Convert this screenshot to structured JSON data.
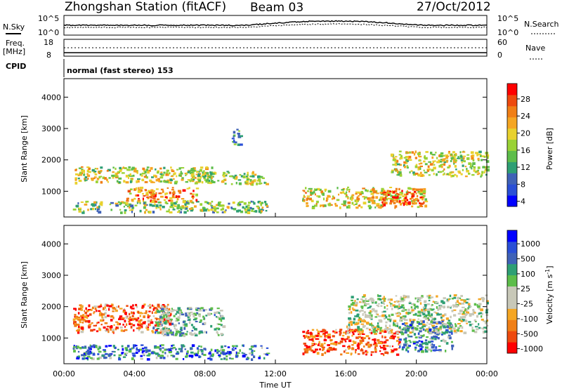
{
  "header": {
    "station": "Zhongshan Station (fitACF)",
    "beam": "Beam 03",
    "date": "27/Oct/2012"
  },
  "strips": {
    "sky_label": "N.Sky",
    "sky_ticks": [
      "10^5",
      "10^0"
    ],
    "search_label": "N.Search",
    "search_ticks": [
      "10^5",
      "10^0"
    ],
    "freq_label_line1": "Freq.",
    "freq_label_line2": "[MHz]",
    "freq_ticks": [
      "18",
      "8"
    ],
    "nave_label": "Nave",
    "nave_ticks": [
      "60",
      "0"
    ],
    "cpid_label": "CPID",
    "cpid_value": "normal (fast stereo) 153"
  },
  "x_ticks": [
    "00:00",
    "04:00",
    "08:00",
    "12:00",
    "16:00",
    "20:00",
    "00:00"
  ],
  "xlabel": "Time UT",
  "chart_data": [
    {
      "type": "heatmap",
      "name": "power",
      "ylabel": "Slant Range [km]",
      "yticks": [
        1000,
        2000,
        3000,
        4000
      ],
      "ylim": [
        180,
        4590
      ],
      "xlim": [
        0,
        24
      ],
      "colorbar": {
        "label": "Power [dB]",
        "ticks": [
          "28",
          "24",
          "20",
          "16",
          "12",
          "8",
          "4"
        ],
        "colors": [
          "#0000ff",
          "#2a4fd6",
          "#3f62b7",
          "#2e9f74",
          "#5dbd4a",
          "#9ad235",
          "#e8d12d",
          "#f5a623",
          "#f07f16",
          "#ee4a0e",
          "#ff0000"
        ]
      },
      "echo_regions": [
        {
          "t0": 0.5,
          "t1": 8.5,
          "r0": 1300,
          "r1": 1800,
          "level": 0.55
        },
        {
          "t0": 0.5,
          "t1": 11.5,
          "r0": 350,
          "r1": 700,
          "level": 0.45
        },
        {
          "t0": 3.5,
          "t1": 7.5,
          "r0": 700,
          "r1": 1150,
          "level": 0.75
        },
        {
          "t0": 7.0,
          "t1": 11.5,
          "r0": 1250,
          "r1": 1650,
          "level": 0.5
        },
        {
          "t0": 13.5,
          "t1": 20.5,
          "r0": 500,
          "r1": 1150,
          "level": 0.6
        },
        {
          "t0": 18.0,
          "t1": 20.5,
          "r0": 600,
          "r1": 1050,
          "level": 0.85
        },
        {
          "t0": 18.5,
          "t1": 24.0,
          "r0": 1500,
          "r1": 2300,
          "level": 0.55
        },
        {
          "t0": 9.5,
          "t1": 10.0,
          "r0": 2500,
          "r1": 3000,
          "level": 0.3
        }
      ]
    },
    {
      "type": "heatmap",
      "name": "velocity",
      "ylabel": "Slant Range [km]",
      "yticks": [
        1000,
        2000,
        3000,
        4000
      ],
      "ylim": [
        180,
        4590
      ],
      "xlim": [
        0,
        24
      ],
      "colorbar": {
        "label": "Velocity [m s",
        "ticks": [
          "1000",
          "500",
          "100",
          "25",
          "-25",
          "-100",
          "-500",
          "-1000"
        ],
        "colors": [
          "#ff0000",
          "#ee4a0e",
          "#f07f16",
          "#f5a623",
          "#c8c8b8",
          "#c8c8b8",
          "#5dbd4a",
          "#2e9f74",
          "#3f62b7",
          "#2a4fd6",
          "#0000ff"
        ]
      },
      "echo_regions": [
        {
          "t0": 0.5,
          "t1": 6.0,
          "r0": 1200,
          "r1": 2100,
          "level": 0.2
        },
        {
          "t0": 0.5,
          "t1": 11.5,
          "r0": 350,
          "r1": 800,
          "level": 0.75
        },
        {
          "t0": 5.0,
          "t1": 9.0,
          "r0": 1100,
          "r1": 2000,
          "level": 0.6
        },
        {
          "t0": 13.5,
          "t1": 19.0,
          "r0": 500,
          "r1": 1300,
          "level": 0.15
        },
        {
          "t0": 16.0,
          "t1": 24.0,
          "r0": 1200,
          "r1": 2400,
          "level": 0.5
        },
        {
          "t0": 19.0,
          "t1": 22.0,
          "r0": 600,
          "r1": 1600,
          "level": 0.7
        }
      ]
    }
  ]
}
